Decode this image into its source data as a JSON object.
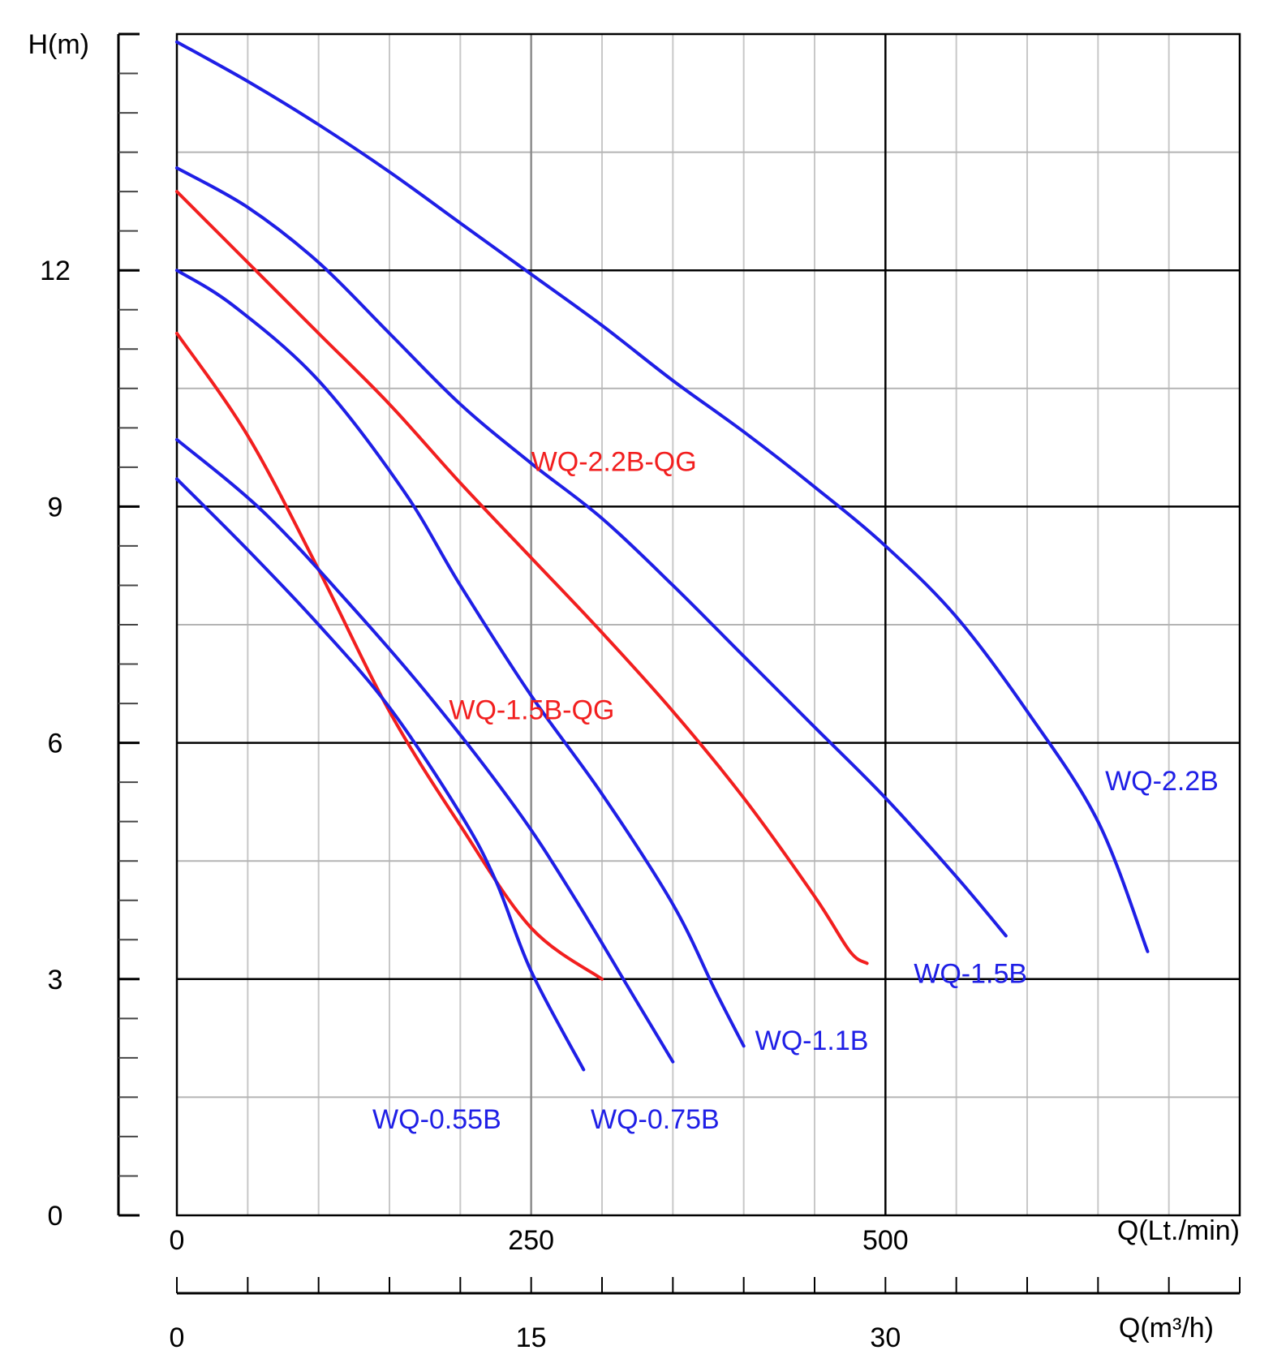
{
  "chart_data": {
    "type": "line",
    "ylabel": "H(m)",
    "xlabel": "Q(Lt./min)",
    "x2label": "Q(m³/h)",
    "xlim": [
      0,
      750
    ],
    "ylim": [
      0,
      15
    ],
    "x_ticks": [
      "0",
      "250",
      "500"
    ],
    "x2_ticks": [
      "0",
      "15",
      "30"
    ],
    "y_ticks": [
      "0",
      "3",
      "6",
      "9",
      "12"
    ],
    "grid": true,
    "colors": {
      "blue": "#1f1fe6",
      "red": "#f21f1f"
    },
    "series": [
      {
        "name": "WQ-2.2B",
        "color": "blue",
        "label_pos": [
          655,
          5.4
        ],
        "points": [
          [
            0,
            14.9
          ],
          [
            50,
            14.4
          ],
          [
            100,
            13.85
          ],
          [
            150,
            13.25
          ],
          [
            200,
            12.6
          ],
          [
            250,
            11.95
          ],
          [
            300,
            11.3
          ],
          [
            350,
            10.6
          ],
          [
            400,
            9.95
          ],
          [
            450,
            9.25
          ],
          [
            500,
            8.5
          ],
          [
            550,
            7.6
          ],
          [
            600,
            6.4
          ],
          [
            650,
            5.0
          ],
          [
            685,
            3.35
          ]
        ]
      },
      {
        "name": "WQ-1.5B",
        "color": "blue",
        "label_pos": [
          520,
          2.95
        ],
        "points": [
          [
            0,
            13.3
          ],
          [
            50,
            12.8
          ],
          [
            100,
            12.1
          ],
          [
            150,
            11.2
          ],
          [
            200,
            10.3
          ],
          [
            250,
            9.55
          ],
          [
            300,
            8.85
          ],
          [
            350,
            8.0
          ],
          [
            400,
            7.1
          ],
          [
            450,
            6.2
          ],
          [
            500,
            5.3
          ],
          [
            550,
            4.3
          ],
          [
            585,
            3.55
          ]
        ]
      },
      {
        "name": "WQ-2.2B-QG",
        "color": "red",
        "label_pos": [
          250,
          9.45
        ],
        "points": [
          [
            0,
            13.0
          ],
          [
            50,
            12.1
          ],
          [
            100,
            11.2
          ],
          [
            150,
            10.3
          ],
          [
            200,
            9.3
          ],
          [
            250,
            8.35
          ],
          [
            300,
            7.4
          ],
          [
            350,
            6.4
          ],
          [
            400,
            5.3
          ],
          [
            450,
            4.05
          ],
          [
            475,
            3.35
          ],
          [
            487,
            3.2
          ]
        ]
      },
      {
        "name": "WQ-1.1B",
        "color": "blue",
        "label_pos": [
          408,
          2.1
        ],
        "points": [
          [
            0,
            12.0
          ],
          [
            40,
            11.55
          ],
          [
            100,
            10.6
          ],
          [
            160,
            9.2
          ],
          [
            200,
            8.0
          ],
          [
            250,
            6.6
          ],
          [
            300,
            5.35
          ],
          [
            350,
            3.95
          ],
          [
            380,
            2.85
          ],
          [
            400,
            2.15
          ]
        ]
      },
      {
        "name": "WQ-1.5B-QG",
        "color": "red",
        "label_pos": [
          192,
          6.3
        ],
        "points": [
          [
            0,
            11.2
          ],
          [
            50,
            9.9
          ],
          [
            100,
            8.2
          ],
          [
            150,
            6.4
          ],
          [
            200,
            4.95
          ],
          [
            250,
            3.65
          ],
          [
            300,
            3.0
          ]
        ]
      },
      {
        "name": "WQ-0.75B",
        "color": "blue",
        "label_pos": [
          292,
          1.1
        ],
        "points": [
          [
            0,
            9.85
          ],
          [
            60,
            8.95
          ],
          [
            120,
            7.8
          ],
          [
            180,
            6.55
          ],
          [
            240,
            5.15
          ],
          [
            280,
            4.05
          ],
          [
            320,
            2.85
          ],
          [
            350,
            1.95
          ]
        ]
      },
      {
        "name": "WQ-0.55B",
        "color": "blue",
        "label_pos": [
          138,
          1.1
        ],
        "points": [
          [
            0,
            9.35
          ],
          [
            50,
            8.45
          ],
          [
            100,
            7.5
          ],
          [
            150,
            6.45
          ],
          [
            200,
            5.1
          ],
          [
            225,
            4.25
          ],
          [
            250,
            3.1
          ],
          [
            287,
            1.85
          ]
        ]
      }
    ]
  }
}
